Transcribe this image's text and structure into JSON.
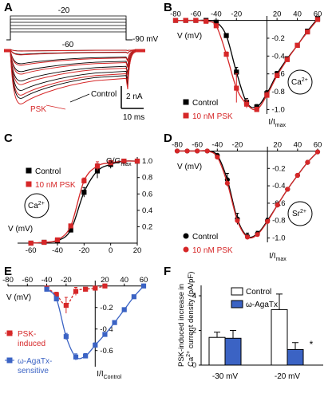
{
  "panel_labels": {
    "A": "A",
    "B": "B",
    "C": "C",
    "D": "D",
    "E": "E",
    "F": "F"
  },
  "panelA": {
    "protocol_labels": {
      "step_top": "-20",
      "step_bottom": "-60",
      "holding": "-90 mV"
    },
    "trace_labels": {
      "control": "Control",
      "psk": "PSK"
    },
    "scale_bar": {
      "current": "2 nA",
      "time": "10 ms"
    },
    "colors": {
      "control": "#000000",
      "psk": "#d62728"
    }
  },
  "chart_data": [
    {
      "id": "B",
      "type": "line",
      "xlabel": "V (mV)",
      "ylabel": "I/Imax",
      "ylabel_main": "I/I",
      "ylabel_sub": "max",
      "xlim": [
        -80,
        60
      ],
      "ylim": [
        -1.05,
        0.05
      ],
      "x_ticks": [
        "-80",
        "-60",
        "-40",
        "-20",
        "20",
        "40",
        "60"
      ],
      "y_ticks": [
        "-0.2",
        "-0.4",
        "-0.6",
        "-0.8",
        "-1.0"
      ],
      "ion_label": "Ca2+",
      "ion_main": "Ca",
      "ion_sup": "2+",
      "legend": [
        "Control",
        "10 nM PSK"
      ],
      "series": [
        {
          "name": "Control",
          "color": "#000000",
          "marker": "square",
          "x": [
            -80,
            -70,
            -60,
            -50,
            -40,
            -30,
            -20,
            -10,
            0,
            10,
            20,
            30,
            40,
            50,
            60
          ],
          "y": [
            0,
            0,
            0,
            0,
            -0.02,
            -0.17,
            -0.58,
            -0.92,
            -0.97,
            -0.82,
            -0.6,
            -0.43,
            -0.28,
            -0.12,
            0.02
          ]
        },
        {
          "name": "10 nM PSK",
          "color": "#d62728",
          "marker": "square",
          "x": [
            -80,
            -70,
            -60,
            -50,
            -40,
            -30,
            -20,
            -10,
            0,
            10,
            20,
            30,
            40,
            50,
            60
          ],
          "y": [
            0,
            0,
            0,
            -0.01,
            -0.06,
            -0.38,
            -0.76,
            -0.94,
            -1.0,
            -0.84,
            -0.62,
            -0.44,
            -0.28,
            -0.13,
            0.01
          ]
        }
      ]
    },
    {
      "id": "C",
      "type": "line",
      "xlabel": "V (mV)",
      "ylabel": "G/Gmax",
      "ylabel_main": "G/G",
      "ylabel_sub": "max",
      "xlim": [
        -70,
        20
      ],
      "ylim": [
        0,
        1.05
      ],
      "x_ticks": [
        "-60",
        "-40",
        "-20",
        "0",
        "20"
      ],
      "y_ticks": [
        "0.2",
        "0.4",
        "0.6",
        "0.8",
        "1.0"
      ],
      "ion_label": "Ca2+",
      "ion_main": "Ca",
      "ion_sup": "2+",
      "legend": [
        "Control",
        "10 nM PSK"
      ],
      "series": [
        {
          "name": "Control",
          "color": "#000000",
          "marker": "square",
          "x": [
            -60,
            -50,
            -40,
            -30,
            -20,
            -10,
            0,
            10,
            20
          ],
          "y": [
            0.0,
            0.01,
            0.03,
            0.16,
            0.62,
            0.88,
            0.96,
            1.0,
            1.0
          ]
        },
        {
          "name": "10 nM PSK",
          "color": "#d62728",
          "marker": "square",
          "x": [
            -60,
            -50,
            -40,
            -30,
            -20,
            -10,
            0,
            10,
            20
          ],
          "y": [
            0.0,
            0.01,
            0.04,
            0.21,
            0.76,
            0.94,
            0.98,
            1.0,
            1.0
          ]
        }
      ]
    },
    {
      "id": "D",
      "type": "line",
      "xlabel": "V (mV)",
      "ylabel": "I/Imax",
      "ylabel_main": "I/I",
      "ylabel_sub": "max",
      "xlim": [
        -80,
        60
      ],
      "ylim": [
        -1.05,
        0.05
      ],
      "x_ticks": [
        "-80",
        "-60",
        "-40",
        "-20",
        "20",
        "40",
        "60"
      ],
      "y_ticks": [
        "-0.2",
        "-0.4",
        "-0.6",
        "-0.8",
        "-1.0"
      ],
      "ion_label": "Sr2+",
      "ion_main": "Sr",
      "ion_sup": "2+",
      "legend": [
        "Control",
        "10 nM PSK"
      ],
      "series": [
        {
          "name": "Control",
          "color": "#000000",
          "marker": "circle",
          "x": [
            -80,
            -70,
            -60,
            -50,
            -40,
            -30,
            -20,
            -10,
            0,
            10,
            20,
            30,
            40,
            50,
            60
          ],
          "y": [
            0,
            0,
            0,
            0,
            -0.05,
            -0.33,
            -0.78,
            -0.98,
            -0.95,
            -0.8,
            -0.62,
            -0.44,
            -0.28,
            -0.13,
            -0.01
          ]
        },
        {
          "name": "10 nM PSK",
          "color": "#d62728",
          "marker": "circle",
          "x": [
            -80,
            -70,
            -60,
            -50,
            -40,
            -30,
            -20,
            -10,
            0,
            10,
            20,
            30,
            40,
            50,
            60
          ],
          "y": [
            0,
            0,
            0,
            0,
            -0.07,
            -0.37,
            -0.8,
            -0.99,
            -0.96,
            -0.81,
            -0.62,
            -0.44,
            -0.28,
            -0.13,
            -0.01
          ]
        }
      ]
    },
    {
      "id": "E",
      "type": "line",
      "xlabel": "V (mV)",
      "ylabel": "I/IControl",
      "ylabel_main": "I/I",
      "ylabel_sub": "Control",
      "xlim": [
        -80,
        60
      ],
      "ylim": [
        -0.75,
        0.05
      ],
      "x_ticks": [
        "-80",
        "-60",
        "-40",
        "-20",
        "20",
        "40",
        "60"
      ],
      "y_ticks": [
        "-0.2",
        "-0.4",
        "-0.6"
      ],
      "legend": [
        "PSK-\ninduced",
        "ω-AgaTx-\nsensitive"
      ],
      "series": [
        {
          "name": "PSK-induced",
          "color": "#d62728",
          "marker": "square",
          "x": [
            -40,
            -30,
            -20,
            -10,
            0,
            10,
            20
          ],
          "y": [
            -0.02,
            -0.08,
            -0.18,
            -0.05,
            -0.03,
            -0.02,
            0.0
          ]
        },
        {
          "name": "ω-AgaTx-sensitive",
          "color": "#3b63c4",
          "marker": "square",
          "x": [
            -40,
            -30,
            -20,
            -10,
            0,
            10,
            20,
            30,
            40,
            50,
            60
          ],
          "y": [
            -0.03,
            -0.12,
            -0.47,
            -0.66,
            -0.65,
            -0.55,
            -0.45,
            -0.34,
            -0.22,
            -0.1,
            0.0
          ]
        }
      ]
    },
    {
      "id": "F",
      "type": "bar",
      "ylabel": "PSK-induced increase in Ca2+ current density (pA/pF)",
      "ylabel_line1": "PSK-induced increase in",
      "ylabel_line2a": "Ca",
      "ylabel_line2sup": "2+",
      "ylabel_line2b": " current density (pA/pF)",
      "ylim": [
        0,
        4.6
      ],
      "y_ticks": [
        "0",
        "2",
        "4"
      ],
      "categories": [
        "-30 mV",
        "-20 mV"
      ],
      "legend": [
        "Control",
        "ω-AgaTx"
      ],
      "series": [
        {
          "name": "Control",
          "color": "#ffffff",
          "values": [
            1.6,
            3.2
          ],
          "errors": [
            0.3,
            0.9
          ]
        },
        {
          "name": "ω-AgaTx",
          "color": "#3b63c4",
          "values": [
            1.55,
            0.9
          ],
          "errors": [
            0.45,
            0.4
          ]
        }
      ],
      "annotation": "*"
    }
  ]
}
